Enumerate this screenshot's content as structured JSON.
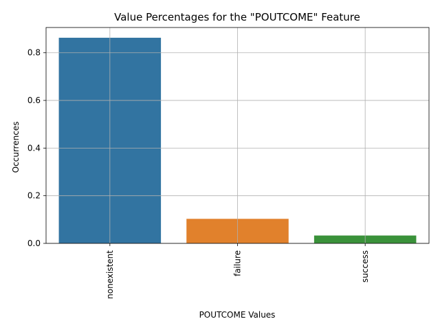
{
  "chart_data": {
    "type": "bar",
    "title": "Value Percentages for the \"POUTCOME\" Feature",
    "xlabel": "POUTCOME Values",
    "ylabel": "Occurrences",
    "categories": [
      "nonexistent",
      "failure",
      "success"
    ],
    "values": [
      0.863,
      0.103,
      0.033
    ],
    "colors": [
      "#3274a1",
      "#e1812c",
      "#3a923a"
    ],
    "ylim": [
      0,
      0.906
    ],
    "yticks": [
      0.0,
      0.2,
      0.4,
      0.6,
      0.8
    ],
    "ytick_labels": [
      "0.0",
      "0.2",
      "0.4",
      "0.6",
      "0.8"
    ],
    "grid": true,
    "xtick_rotation": "vertical"
  }
}
